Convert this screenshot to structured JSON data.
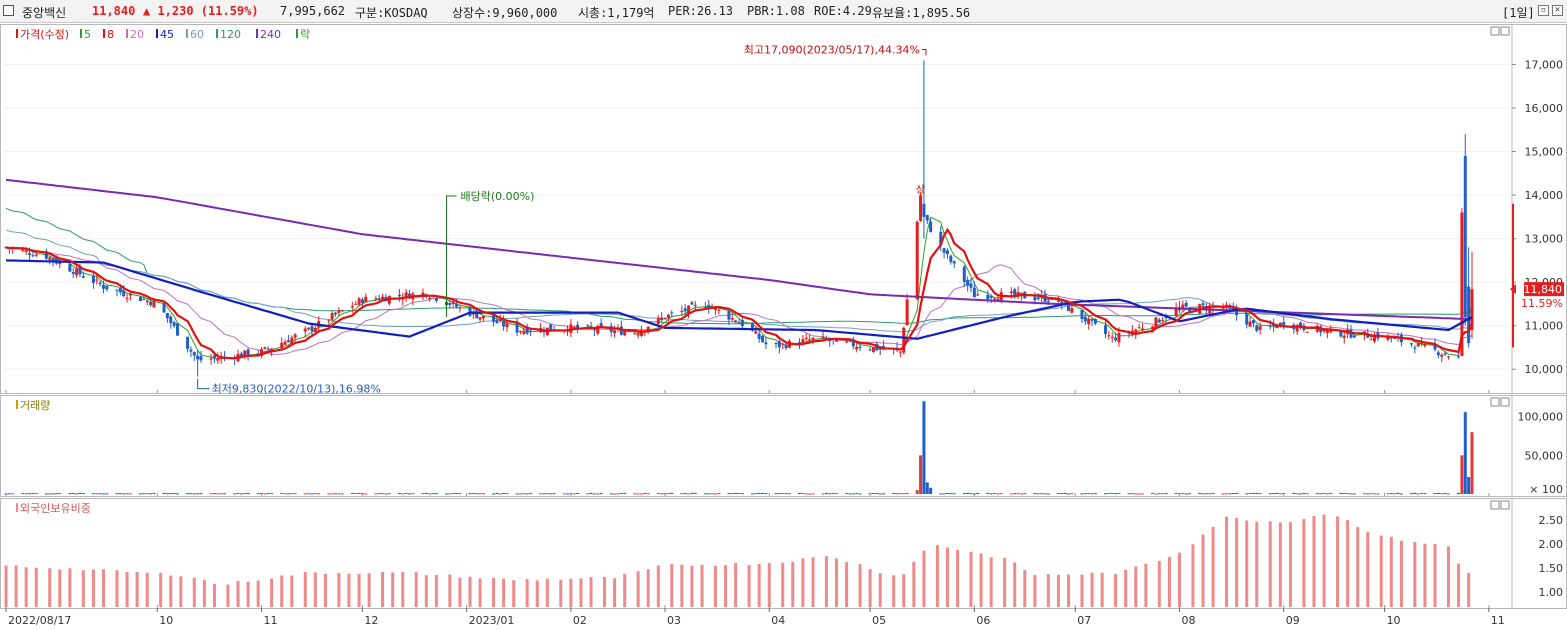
{
  "header": {
    "name": "중앙백신",
    "price": "11,840",
    "change": "▲ 1,230 (11.59%)",
    "volume": "7,995,662",
    "market": "구분:KOSDAQ",
    "shares": "상장수:9,960,000",
    "marketcap": "시총:1,179억",
    "per": "PER:26.13",
    "pbr": "PBR:1.08",
    "roe": "ROE:4.29",
    "reserve": "유보율:1,895.56",
    "period": "[1일]",
    "win_min": "▫",
    "win_close": "✕"
  },
  "colors": {
    "up": "#e51f1f",
    "down": "#1f5fc8",
    "ma5": "#2aa02a",
    "ma8": "#e11111",
    "ma20": "#c070c0",
    "ma45": "#1020c0",
    "ma60": "#6fa0c0",
    "ma120": "#2a9a6a",
    "ma240": "#7a2ab0",
    "volume": "#e23a3a",
    "foreign": "#f08a8a",
    "annotation_green": "#1a7a1a",
    "annotation_red": "#c01010"
  },
  "price_panel": {
    "legend": [
      {
        "label": "가격(수정)",
        "color": "#e11111"
      },
      {
        "label": "5",
        "color": "#2aa02a"
      },
      {
        "label": "8",
        "color": "#e11111"
      },
      {
        "label": "20",
        "color": "#c070c0"
      },
      {
        "label": "45",
        "color": "#1020c0"
      },
      {
        "label": "60",
        "color": "#6fa0c0"
      },
      {
        "label": "120",
        "color": "#2a9a6a"
      },
      {
        "label": "240",
        "color": "#7a2ab0"
      },
      {
        "label": "락",
        "color": "#2aa02a"
      }
    ],
    "high_label": "최고17,090(2023/05/17),44.34%",
    "low_label": "최저9,830(2022/10/13),16.98%",
    "dividend_label": "배당락(0.00%)",
    "upper_limit_label": "상",
    "last_price": "11,840",
    "last_change": "11.59%"
  },
  "volume_panel": {
    "legend": "거래량"
  },
  "foreign_panel": {
    "legend": "외국인보유비중"
  },
  "chart_data": [
    {
      "type": "line",
      "name": "price",
      "x": [
        "2022/08/17",
        "2022/08/29",
        "2022/09/15",
        "2022/10/01",
        "2022/10/13",
        "2022/11/01",
        "2022/11/15",
        "2022/12/01",
        "2022/12/20",
        "2023/01/02",
        "2023/01/16",
        "2023/02/01",
        "2023/02/20",
        "2023/03/01",
        "2023/03/13",
        "2023/03/25",
        "2023/04/01",
        "2023/04/15",
        "2023/05/01",
        "2023/05/10",
        "2023/05/16",
        "2023/05/17",
        "2023/05/22",
        "2023/06/01",
        "2023/06/12",
        "2023/06/25",
        "2023/07/01",
        "2023/07/12",
        "2023/07/25",
        "2023/08/01",
        "2023/08/14",
        "2023/08/25",
        "2023/09/01",
        "2023/09/15",
        "2023/10/01",
        "2023/10/13",
        "2023/10/23",
        "2023/10/24",
        "2023/10/25",
        "2023/10/27"
      ],
      "close": [
        12800,
        12600,
        11900,
        11500,
        10200,
        10400,
        10900,
        11600,
        11750,
        11300,
        10900,
        10950,
        10850,
        11200,
        11500,
        11000,
        10500,
        10700,
        10500,
        10400,
        14000,
        13500,
        12800,
        11700,
        11700,
        11600,
        11300,
        10700,
        11100,
        11400,
        11450,
        10900,
        11050,
        10850,
        10750,
        10500,
        10250,
        10400,
        12200,
        11840
      ],
      "high": 17090,
      "low": 9830,
      "ylim": [
        9500,
        17700
      ],
      "yticks": [
        "10,000",
        "11,000",
        "12,000",
        "13,000",
        "14,000",
        "15,000",
        "16,000",
        "17,000"
      ],
      "ma240": [
        [
          "2022/08/17",
          14350
        ],
        [
          "2022/10/01",
          13950
        ],
        [
          "2022/12/01",
          13100
        ],
        [
          "2023/01/16",
          12700
        ],
        [
          "2023/04/01",
          12050
        ],
        [
          "2023/05/01",
          11720
        ],
        [
          "2023/06/25",
          11500
        ],
        [
          "2023/10/27",
          11150
        ]
      ],
      "ma45": [
        [
          "2022/08/17",
          12500
        ],
        [
          "2022/09/15",
          12450
        ],
        [
          "2022/10/13",
          11800
        ],
        [
          "2022/11/15",
          11050
        ],
        [
          "2022/12/15",
          10750
        ],
        [
          "2023/01/02",
          11300
        ],
        [
          "2023/02/15",
          11300
        ],
        [
          "2023/03/01",
          10950
        ],
        [
          "2023/04/15",
          10900
        ],
        [
          "2023/05/15",
          10700
        ],
        [
          "2023/06/10",
          11200
        ],
        [
          "2023/07/01",
          11550
        ],
        [
          "2023/07/15",
          11600
        ],
        [
          "2023/08/01",
          11100
        ],
        [
          "2023/08/20",
          11400
        ],
        [
          "2023/09/15",
          11150
        ],
        [
          "2023/10/20",
          10900
        ],
        [
          "2023/10/27",
          11200
        ]
      ]
    },
    {
      "type": "bar",
      "name": "volume",
      "ylim": [
        0,
        110000
      ],
      "yticks": [
        "× 100",
        "50,000",
        "100,000"
      ],
      "spikes": [
        [
          "2023/05/15",
          5000
        ],
        [
          "2023/05/16",
          50000
        ],
        [
          "2023/05/17",
          120000
        ],
        [
          "2023/05/18",
          15000
        ],
        [
          "2023/05/19",
          8000
        ],
        [
          "2023/10/24",
          50000
        ],
        [
          "2023/10/25",
          106000
        ],
        [
          "2023/10/26",
          22000
        ],
        [
          "2023/10/27",
          80000
        ]
      ]
    },
    {
      "type": "bar",
      "name": "foreign_ownership",
      "ylim": [
        0.75,
        2.75
      ],
      "yticks": [
        "1.00",
        "1.50",
        "2.00",
        "2.50"
      ],
      "values": [
        [
          "2022/08/17",
          1.55
        ],
        [
          "2022/09/15",
          1.45
        ],
        [
          "2022/10/10",
          1.35
        ],
        [
          "2022/10/20",
          1.15
        ],
        [
          "2022/11/15",
          1.4
        ],
        [
          "2022/12/15",
          1.4
        ],
        [
          "2023/01/15",
          1.25
        ],
        [
          "2023/02/15",
          1.3
        ],
        [
          "2023/03/01",
          1.55
        ],
        [
          "2023/04/01",
          1.6
        ],
        [
          "2023/04/20",
          1.75
        ],
        [
          "2023/05/10",
          1.3
        ],
        [
          "2023/05/20",
          2.0
        ],
        [
          "2023/06/10",
          1.7
        ],
        [
          "2023/06/20",
          1.35
        ],
        [
          "2023/07/15",
          1.4
        ],
        [
          "2023/08/01",
          1.8
        ],
        [
          "2023/08/15",
          2.55
        ],
        [
          "2023/09/01",
          2.45
        ],
        [
          "2023/09/15",
          2.65
        ],
        [
          "2023/10/01",
          2.15
        ],
        [
          "2023/10/20",
          1.95
        ],
        [
          "2023/10/25",
          1.4
        ]
      ]
    }
  ],
  "x_axis": {
    "labels": [
      "2022/08/17",
      "10",
      "11",
      "12",
      "2023/01",
      "02",
      "03",
      "04",
      "05",
      "06",
      "07",
      "08",
      "09",
      "10",
      "11"
    ]
  }
}
